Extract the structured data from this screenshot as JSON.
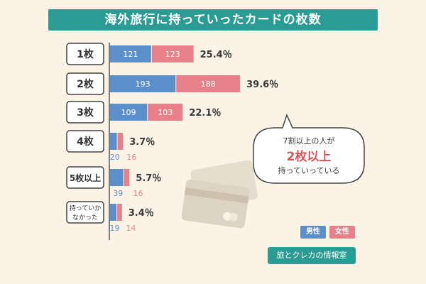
{
  "chart_data": {
    "type": "bar",
    "title": "海外旅行に持っていったカードの枚数",
    "categories": [
      "1枚",
      "2枚",
      "3枚",
      "4枚",
      "5枚以上",
      "持っていかなかった"
    ],
    "series": [
      {
        "name": "男性",
        "values": [
          121,
          193,
          109,
          20,
          39,
          19
        ],
        "color": "#5b8fcc"
      },
      {
        "name": "女性",
        "values": [
          123,
          188,
          103,
          16,
          16,
          14
        ],
        "color": "#e8808a"
      }
    ],
    "percent_labels": [
      "25.4％",
      "39.6％",
      "22.1％",
      "3.7％",
      "5.7％",
      "3.4％"
    ],
    "value_labels": {
      "male": [
        "121",
        "193",
        "109",
        "20",
        "39",
        "19"
      ],
      "female": [
        "123",
        "188",
        "103",
        "16",
        "16",
        "14"
      ]
    },
    "stacked": true,
    "orientation": "horizontal"
  },
  "callout": {
    "line1": "7割以上の人が",
    "line2": "2枚以上",
    "line3": "持っていっている"
  },
  "legend": {
    "male": "男性",
    "female": "女性"
  },
  "source": "旅とクレカの情報室",
  "colors": {
    "teal": "#2a9c94",
    "male": "#5b8fcc",
    "female": "#e8808a",
    "background": "#fbf4e6"
  }
}
